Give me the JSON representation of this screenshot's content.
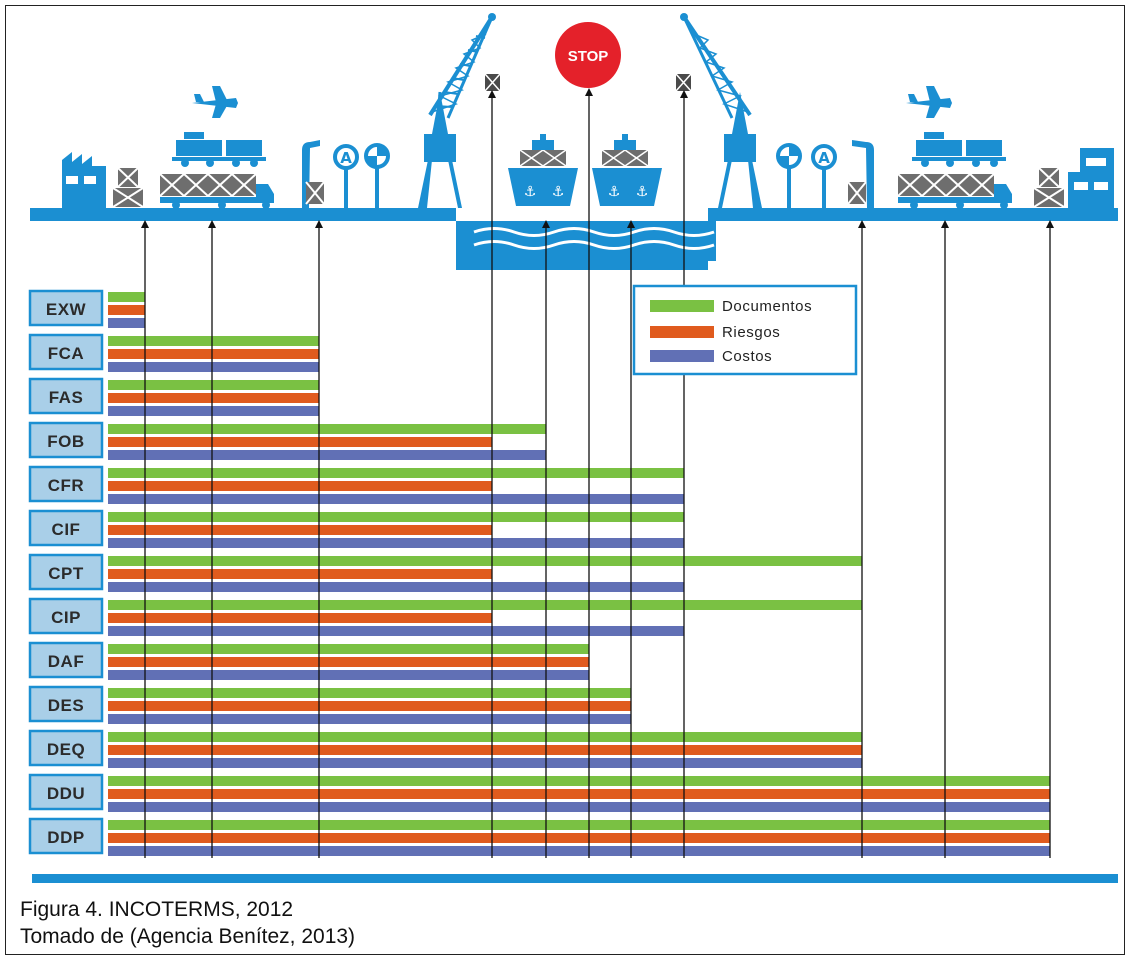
{
  "colors": {
    "scene_blue": "#1b8fd2",
    "documentos": "#7ac143",
    "riesgos": "#e05b1e",
    "costos": "#6170b5",
    "label_bg": "#a9cfe8",
    "label_border": "#1b8fd2",
    "stop_sign": "#e4212a"
  },
  "icons": [
    "factory-icon",
    "crate-icon",
    "airplane-icon",
    "truck-icon",
    "trailer-icon",
    "loading-post-icon",
    "customs-sign-icon",
    "port-crane-icon",
    "stop-sign-icon",
    "ship-icon",
    "anchor-icon",
    "warehouse-icon"
  ],
  "stop_sign": {
    "label": "STOP"
  },
  "legend": [
    {
      "key": "documentos",
      "label": "Documentos"
    },
    {
      "key": "riesgos",
      "label": "Riesgos"
    },
    {
      "key": "costos",
      "label": "Costos"
    }
  ],
  "chart_data": {
    "type": "bar",
    "checkpoints": 12,
    "bar_end_checkpoint_index": "0 = seller's premises (left) ... 11 = buyer's premises (right)",
    "terms": [
      {
        "code": "EXW",
        "documentos": 1,
        "riesgos": 1,
        "costos": 1
      },
      {
        "code": "FCA",
        "documentos": 3,
        "riesgos": 3,
        "costos": 3
      },
      {
        "code": "FAS",
        "documentos": 3,
        "riesgos": 3,
        "costos": 3
      },
      {
        "code": "FOB",
        "documentos": 5,
        "riesgos": 4,
        "costos": 5
      },
      {
        "code": "CFR",
        "documentos": 8,
        "riesgos": 4,
        "costos": 8
      },
      {
        "code": "CIF",
        "documentos": 8,
        "riesgos": 4,
        "costos": 8
      },
      {
        "code": "CPT",
        "documentos": 9,
        "riesgos": 4,
        "costos": 8
      },
      {
        "code": "CIP",
        "documentos": 9,
        "riesgos": 4,
        "costos": 8
      },
      {
        "code": "DAF",
        "documentos": 6,
        "riesgos": 6,
        "costos": 6
      },
      {
        "code": "DES",
        "documentos": 7,
        "riesgos": 7,
        "costos": 7
      },
      {
        "code": "DEQ",
        "documentos": 9,
        "riesgos": 9,
        "costos": 9
      },
      {
        "code": "DDU",
        "documentos": 11,
        "riesgos": 11,
        "costos": 11
      },
      {
        "code": "DDP",
        "documentos": 11,
        "riesgos": 11,
        "costos": 11
      }
    ]
  },
  "caption": {
    "line1": "Figura 4. INCOTERMS, 2012",
    "line2": "Tomado de (Agencia Benítez, 2013)"
  }
}
